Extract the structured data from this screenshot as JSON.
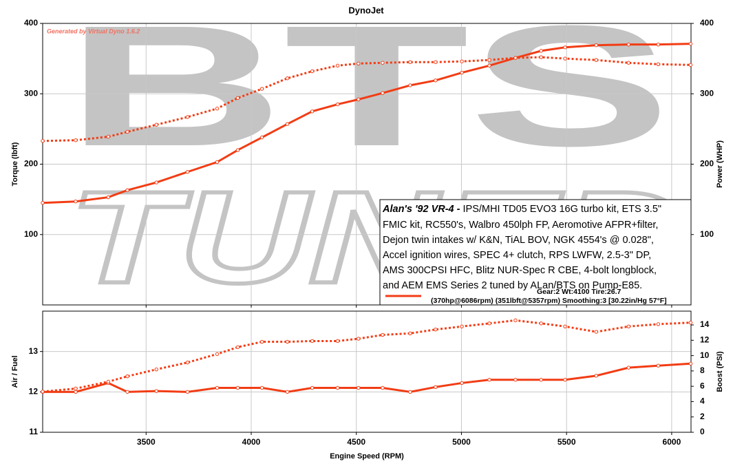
{
  "title": "DynoJet",
  "credit": "Generated by Virtual Dyno 1.6.2",
  "watermark": [
    "BTS",
    "TUNED"
  ],
  "annotation": {
    "heading": "Alan's '92 VR-4 -",
    "lines": [
      "IPS/MHI TD05 EVO3 16G turbo kit, ETS 3.5\"",
      "FMIC kit, RC550's, Walbro 450lph FP, Aeromotive AFPR+filter,",
      "Dejon twin intakes w/ K&N, TiAL BOV, NGK 4554's @ 0.028\",",
      "Accel ignition wires, SPEC 4+ clutch, RPS LWFW, 2.5-3\" DP,",
      "AMS 300CPSI HFC, Blitz NUR-Spec R CBE, 4-bolt longblock,",
      "and AEM EMS Series 2 tuned by ALan/BTS on Pump-E85."
    ]
  },
  "run_label": [
    "Gear:2 Wt:4100 Tire:26.7",
    "(370hp@6086rpm) (351lbft@5357rpm) Smoothing:3 [30.22in/Hg 57°F]"
  ],
  "chart_data": [
    {
      "type": "line",
      "ylabel": "Torque (lbft)",
      "y2label": "Power (WHP)",
      "x": [
        3008,
        3165,
        3320,
        3411,
        3549,
        3697,
        3838,
        3936,
        4051,
        4172,
        4290,
        4411,
        4510,
        4625,
        4756,
        4877,
        5002,
        5133,
        5257,
        5379,
        5493,
        5641,
        5795,
        5936,
        6090
      ],
      "xlim": [
        3008,
        6092
      ],
      "xticks": [
        3500,
        4000,
        4500,
        5000,
        5500,
        6000
      ],
      "xtick_labels": false,
      "ylim": [
        0,
        400
      ],
      "yticks": [
        100,
        200,
        300,
        400
      ],
      "y2lim": [
        0,
        400
      ],
      "y2ticks": [
        100,
        200,
        300,
        400
      ],
      "grid": true,
      "series": [
        {
          "color": "#f23c14",
          "style": "dotted",
          "values": [
            233,
            234,
            239,
            246,
            256,
            267,
            279,
            294,
            307,
            322,
            332,
            340,
            343,
            344,
            345,
            345,
            346,
            348,
            351,
            352,
            350,
            348,
            344,
            342,
            341
          ]
        },
        {
          "color": "#f23c14",
          "style": "solid",
          "axis": "y2",
          "values": [
            145,
            147,
            153,
            163,
            174,
            189,
            203,
            220,
            238,
            257,
            275,
            285,
            292,
            301,
            312,
            319,
            330,
            340,
            351,
            361,
            366,
            369,
            370,
            370,
            371
          ]
        }
      ]
    },
    {
      "type": "line",
      "xlabel": "Engine Speed (RPM)",
      "ylabel": "Air / Fuel",
      "y2label": "Boost (PSI)",
      "x": [
        3008,
        3165,
        3320,
        3411,
        3549,
        3697,
        3838,
        3936,
        4051,
        4172,
        4290,
        4411,
        4510,
        4625,
        4756,
        4877,
        5002,
        5133,
        5257,
        5379,
        5493,
        5641,
        5795,
        5936,
        6090
      ],
      "xlim": [
        3008,
        6092
      ],
      "xticks": [
        3500,
        4000,
        4500,
        5000,
        5500,
        6000
      ],
      "xtick_labels": true,
      "ylim": [
        11,
        14
      ],
      "yticks": [
        11,
        12,
        13
      ],
      "y2lim": [
        0,
        15.8
      ],
      "y2ticks": [
        0,
        2,
        4,
        6,
        8,
        10,
        12,
        14
      ],
      "grid": true,
      "series": [
        {
          "color": "#f23c14",
          "style": "solid",
          "values": [
            12.0,
            12.0,
            12.22,
            12.0,
            12.02,
            12.0,
            12.1,
            12.1,
            12.1,
            12.0,
            12.1,
            12.1,
            12.1,
            12.1,
            12.0,
            12.12,
            12.22,
            12.3,
            12.3,
            12.3,
            12.3,
            12.4,
            12.6,
            12.65,
            12.7
          ]
        },
        {
          "color": "#f23c14",
          "style": "dotted",
          "axis": "y2",
          "values": [
            5.3,
            5.7,
            6.6,
            7.3,
            8.2,
            9.1,
            10.2,
            11.1,
            11.8,
            11.8,
            11.9,
            11.9,
            12.2,
            12.7,
            12.9,
            13.4,
            13.8,
            14.2,
            14.6,
            14.2,
            13.8,
            13.1,
            13.8,
            14.1,
            14.3
          ]
        }
      ]
    }
  ]
}
